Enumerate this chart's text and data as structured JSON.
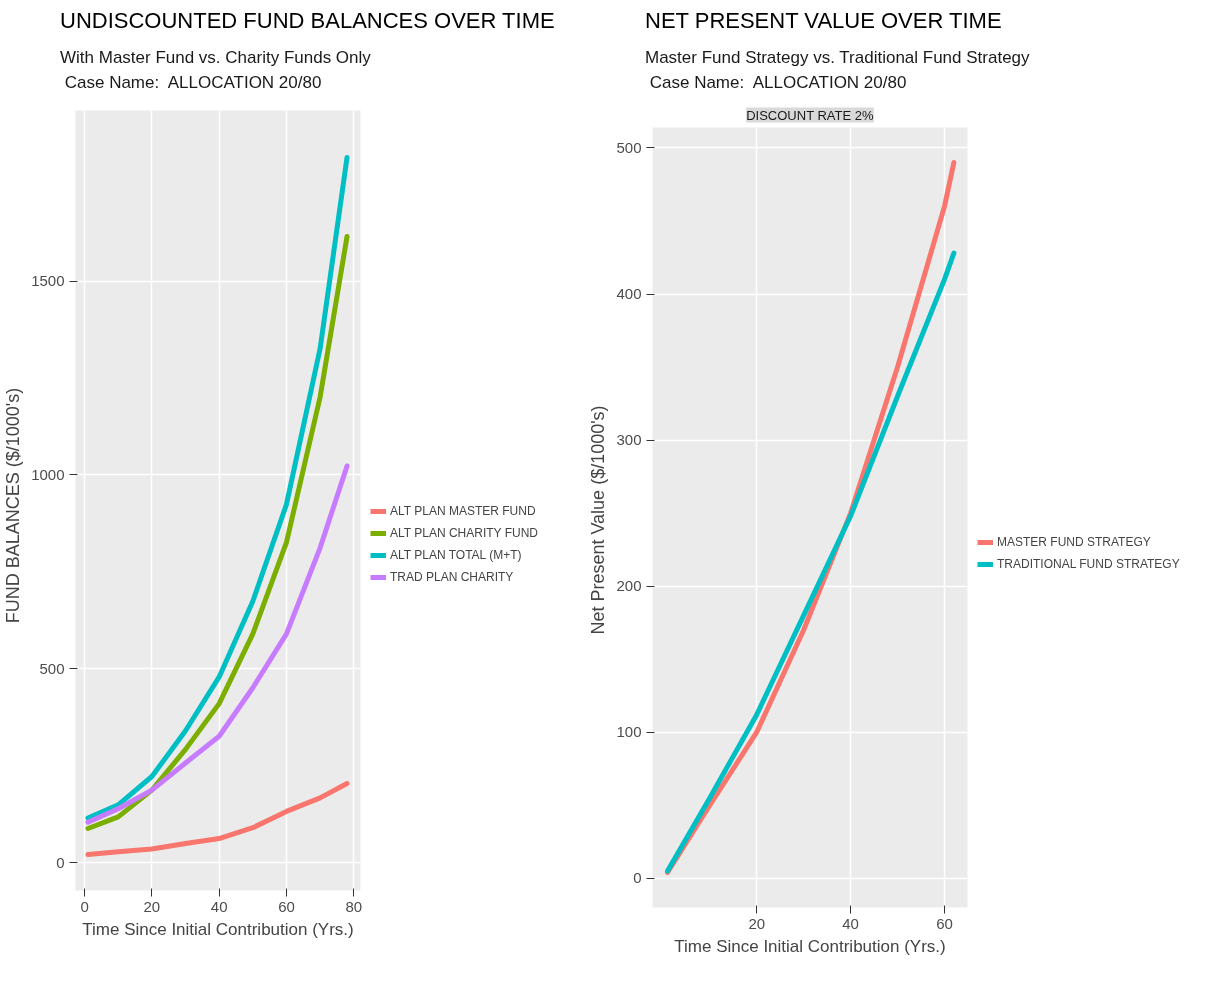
{
  "chart_data": [
    {
      "type": "line",
      "title": "UNDISCOUNTED FUND BALANCES OVER TIME",
      "subtitle": "With Master Fund vs. Charity Funds Only\n Case Name:  ALLOCATION 20/80",
      "xlabel": "Time Since Initial Contribution (Yrs.)",
      "ylabel": "FUND BALANCES   ($/1000's)",
      "x": [
        1,
        10,
        20,
        30,
        40,
        50,
        60,
        70,
        78
      ],
      "xlim": [
        -2.7,
        82
      ],
      "xticks": [
        0,
        20,
        40,
        60,
        80
      ],
      "ylim": [
        -72,
        1940
      ],
      "yticks": [
        0,
        500,
        1000,
        1500
      ],
      "grid": true,
      "legend": "right",
      "line_style": "solid",
      "series": [
        {
          "name": "ALT PLAN MASTER FUND",
          "color": "#f8766d",
          "values": [
            21,
            28,
            35,
            49,
            62,
            90,
            132,
            167,
            204
          ]
        },
        {
          "name": "ALT PLAN CHARITY FUND",
          "color": "#7cae00",
          "values": [
            88,
            118,
            187,
            292,
            410,
            590,
            826,
            1201,
            1615
          ]
        },
        {
          "name": "ALT PLAN TOTAL (M+T)",
          "color": "#00bfc4",
          "values": [
            115,
            149,
            222,
            340,
            479,
            674,
            924,
            1326,
            1819
          ]
        },
        {
          "name": "TRAD PLAN CHARITY",
          "color": "#c77cff",
          "values": [
            104,
            139,
            187,
            257,
            326,
            451,
            590,
            812,
            1023
          ]
        }
      ]
    },
    {
      "type": "line",
      "title": "NET PRESENT VALUE OVER TIME",
      "subtitle": "Master Fund Strategy vs. Traditional Fund Strategy\n Case Name:  ALLOCATION 20/80",
      "annotations": [
        "DISCOUNT RATE 2%"
      ],
      "xlabel": "Time Since Initial Contribution (Yrs.)",
      "ylabel": "Net Present Value  ($/1000's)",
      "x": [
        1,
        10,
        20,
        30,
        40,
        50,
        60,
        62
      ],
      "xlim": [
        -2.2,
        64.9
      ],
      "xticks": [
        20,
        40,
        60
      ],
      "ylim": [
        -20,
        514
      ],
      "yticks": [
        0,
        100,
        200,
        300,
        400,
        500
      ],
      "grid": true,
      "legend": "right",
      "line_style": "solid",
      "series": [
        {
          "name": "MASTER FUND STRATEGY",
          "color": "#f8766d",
          "values": [
            4,
            50,
            100,
            170,
            250,
            350,
            460,
            490
          ]
        },
        {
          "name": "TRADITIONAL FUND STRATEGY",
          "color": "#00bfc4",
          "values": [
            5,
            55,
            112,
            180,
            248,
            330,
            410,
            428
          ]
        }
      ]
    }
  ]
}
